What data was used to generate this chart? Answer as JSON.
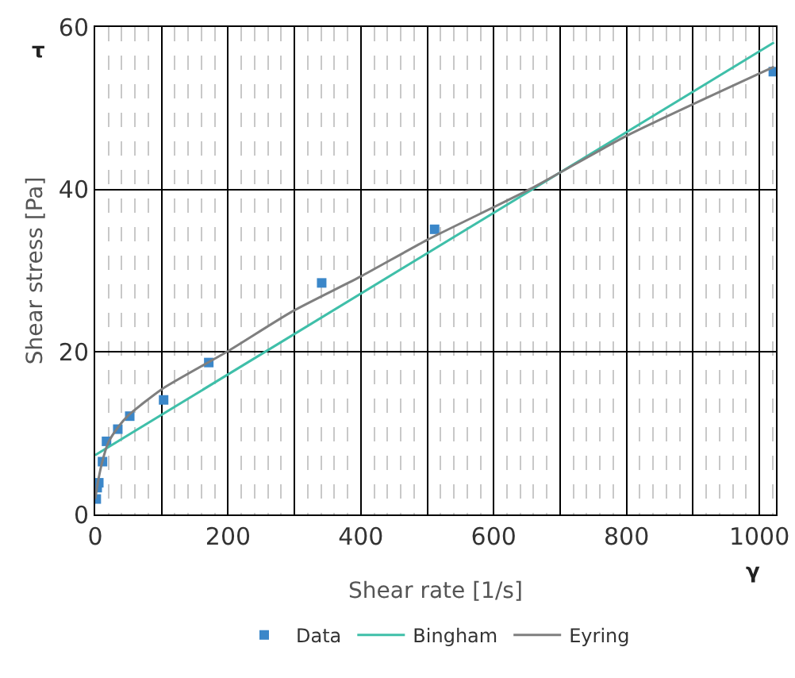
{
  "chart_data": {
    "type": "scatter",
    "xlabel": "Shear rate [1/s]",
    "ylabel": "Shear stress [Pa]",
    "annotations": [
      "τ",
      "γ"
    ],
    "xlim": [
      0,
      1025
    ],
    "ylim": [
      0,
      60
    ],
    "xticks": [
      0,
      {
        "value": 100,
        "label": null
      },
      200,
      {
        "value": 300,
        "label": null
      },
      400,
      {
        "value": 500,
        "label": null
      },
      600,
      {
        "value": 700,
        "label": null
      },
      800,
      {
        "value": 900,
        "label": null
      },
      1000
    ],
    "yticks": [
      0,
      20,
      40,
      60
    ],
    "grid": true,
    "legend": "bottom",
    "series": [
      {
        "name": "Data",
        "marker": "square",
        "color": "#3b87c9",
        "x": [
          1.6,
          3,
          5.4,
          11,
          17,
          34,
          52,
          103,
          171,
          341,
          511,
          1021
        ],
        "values": [
          1.9,
          3.3,
          3.9,
          6.5,
          9.0,
          10.5,
          12.1,
          14.1,
          18.7,
          28.5,
          35.1,
          54.5
        ]
      },
      {
        "name": "Bingham",
        "type": "line",
        "color": "#3fbfa9",
        "line_style": "solid",
        "x": [
          0,
          1022
        ],
        "values": [
          7.3,
          58.1
        ]
      },
      {
        "name": "Eyring",
        "type": "line",
        "color": "#7f7f7f",
        "line_style": "solid",
        "x": [
          0,
          3,
          10,
          20,
          35,
          50,
          100,
          200,
          297,
          400,
          500,
          656,
          800,
          1022
        ],
        "values": [
          1.9,
          3.5,
          6.3,
          8.9,
          10.8,
          12.2,
          15.4,
          20.1,
          25,
          29.3,
          33.8,
          40.1,
          46.6,
          55.1
        ]
      }
    ]
  }
}
